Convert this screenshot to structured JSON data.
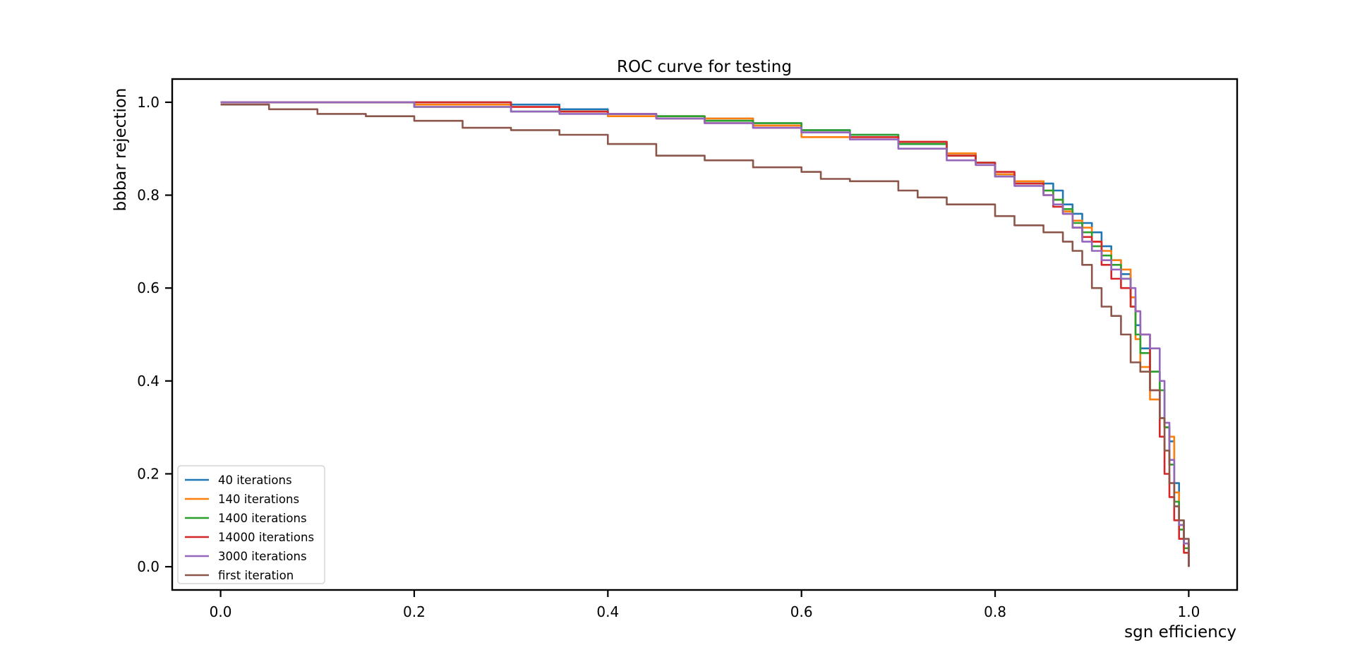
{
  "chart_data": {
    "type": "line",
    "title": "ROC curve for testing",
    "xlabel": "sgn efficiency",
    "ylabel": "bbbar rejection",
    "xlim": [
      -0.05,
      1.05
    ],
    "ylim": [
      -0.05,
      1.05
    ],
    "xticks": [
      0.0,
      0.2,
      0.4,
      0.6,
      0.8,
      1.0
    ],
    "xtick_labels": [
      "0.0",
      "0.2",
      "0.4",
      "0.6",
      "0.8",
      "1.0"
    ],
    "yticks": [
      0.0,
      0.2,
      0.4,
      0.6,
      0.8,
      1.0
    ],
    "ytick_labels": [
      "0.0",
      "0.2",
      "0.4",
      "0.6",
      "0.8",
      "1.0"
    ],
    "grid": false,
    "legend_position": "lower-left",
    "series": [
      {
        "name": "40 iterations",
        "color": "#1f77b4",
        "x": [
          0.0,
          0.1,
          0.2,
          0.3,
          0.35,
          0.4,
          0.45,
          0.5,
          0.55,
          0.6,
          0.65,
          0.7,
          0.75,
          0.78,
          0.8,
          0.82,
          0.85,
          0.86,
          0.87,
          0.88,
          0.89,
          0.9,
          0.91,
          0.92,
          0.93,
          0.94,
          0.945,
          0.95,
          0.96,
          0.97,
          0.975,
          0.98,
          0.985,
          0.99,
          0.995,
          1.0
        ],
        "y": [
          1.0,
          1.0,
          1.0,
          0.995,
          0.985,
          0.975,
          0.97,
          0.965,
          0.955,
          0.94,
          0.93,
          0.91,
          0.89,
          0.87,
          0.845,
          0.83,
          0.825,
          0.81,
          0.78,
          0.76,
          0.74,
          0.72,
          0.69,
          0.66,
          0.63,
          0.58,
          0.52,
          0.47,
          0.42,
          0.32,
          0.3,
          0.27,
          0.18,
          0.1,
          0.05,
          0.0
        ]
      },
      {
        "name": "140 iterations",
        "color": "#ff7f0e",
        "x": [
          0.0,
          0.1,
          0.2,
          0.3,
          0.35,
          0.4,
          0.45,
          0.5,
          0.55,
          0.6,
          0.65,
          0.7,
          0.75,
          0.78,
          0.8,
          0.82,
          0.85,
          0.86,
          0.87,
          0.88,
          0.89,
          0.9,
          0.91,
          0.92,
          0.93,
          0.94,
          0.945,
          0.95,
          0.96,
          0.97,
          0.975,
          0.98,
          0.985,
          0.99,
          0.995,
          1.0
        ],
        "y": [
          1.0,
          1.0,
          0.995,
          0.99,
          0.98,
          0.97,
          0.97,
          0.965,
          0.95,
          0.925,
          0.925,
          0.915,
          0.89,
          0.865,
          0.845,
          0.83,
          0.81,
          0.79,
          0.765,
          0.745,
          0.73,
          0.7,
          0.68,
          0.66,
          0.64,
          0.58,
          0.49,
          0.43,
          0.36,
          0.32,
          0.3,
          0.28,
          0.16,
          0.09,
          0.04,
          0.0
        ]
      },
      {
        "name": "1400 iterations",
        "color": "#2ca02c",
        "x": [
          0.0,
          0.1,
          0.2,
          0.3,
          0.35,
          0.4,
          0.45,
          0.5,
          0.55,
          0.6,
          0.65,
          0.7,
          0.75,
          0.78,
          0.8,
          0.82,
          0.85,
          0.86,
          0.87,
          0.88,
          0.89,
          0.9,
          0.91,
          0.92,
          0.93,
          0.94,
          0.945,
          0.95,
          0.96,
          0.97,
          0.975,
          0.98,
          0.985,
          0.99,
          0.995,
          1.0
        ],
        "y": [
          1.0,
          1.0,
          0.99,
          0.98,
          0.98,
          0.975,
          0.97,
          0.96,
          0.955,
          0.94,
          0.93,
          0.91,
          0.885,
          0.87,
          0.84,
          0.825,
          0.81,
          0.79,
          0.77,
          0.74,
          0.72,
          0.69,
          0.67,
          0.65,
          0.62,
          0.56,
          0.5,
          0.46,
          0.42,
          0.38,
          0.3,
          0.22,
          0.14,
          0.08,
          0.04,
          0.0
        ]
      },
      {
        "name": "14000 iterations",
        "color": "#d62728",
        "x": [
          0.0,
          0.1,
          0.2,
          0.3,
          0.35,
          0.4,
          0.45,
          0.5,
          0.55,
          0.6,
          0.65,
          0.7,
          0.75,
          0.78,
          0.8,
          0.82,
          0.85,
          0.86,
          0.87,
          0.88,
          0.89,
          0.9,
          0.91,
          0.92,
          0.93,
          0.94,
          0.945,
          0.95,
          0.96,
          0.97,
          0.975,
          0.98,
          0.985,
          0.99,
          0.995,
          1.0
        ],
        "y": [
          1.0,
          1.0,
          1.0,
          0.99,
          0.98,
          0.975,
          0.965,
          0.955,
          0.945,
          0.935,
          0.925,
          0.915,
          0.885,
          0.87,
          0.85,
          0.825,
          0.8,
          0.775,
          0.76,
          0.73,
          0.71,
          0.7,
          0.65,
          0.62,
          0.6,
          0.56,
          0.55,
          0.5,
          0.38,
          0.28,
          0.2,
          0.15,
          0.1,
          0.06,
          0.03,
          0.0
        ]
      },
      {
        "name": "3000 iterations",
        "color": "#9467bd",
        "x": [
          0.0,
          0.1,
          0.2,
          0.3,
          0.35,
          0.4,
          0.45,
          0.5,
          0.55,
          0.6,
          0.65,
          0.7,
          0.75,
          0.78,
          0.8,
          0.82,
          0.85,
          0.86,
          0.87,
          0.88,
          0.89,
          0.9,
          0.91,
          0.92,
          0.93,
          0.94,
          0.945,
          0.95,
          0.96,
          0.97,
          0.975,
          0.98,
          0.985,
          0.99,
          0.995,
          1.0
        ],
        "y": [
          1.0,
          1.0,
          0.99,
          0.98,
          0.975,
          0.975,
          0.965,
          0.955,
          0.945,
          0.935,
          0.92,
          0.9,
          0.875,
          0.865,
          0.84,
          0.82,
          0.8,
          0.78,
          0.76,
          0.73,
          0.7,
          0.68,
          0.66,
          0.64,
          0.62,
          0.6,
          0.55,
          0.5,
          0.47,
          0.4,
          0.31,
          0.23,
          0.13,
          0.09,
          0.05,
          0.0
        ]
      },
      {
        "name": "first iteration",
        "color": "#8c564b",
        "x": [
          0.0,
          0.05,
          0.1,
          0.15,
          0.2,
          0.25,
          0.3,
          0.35,
          0.4,
          0.45,
          0.5,
          0.55,
          0.6,
          0.62,
          0.65,
          0.7,
          0.72,
          0.75,
          0.8,
          0.82,
          0.85,
          0.87,
          0.88,
          0.89,
          0.9,
          0.91,
          0.92,
          0.93,
          0.94,
          0.95,
          0.96,
          0.97,
          0.975,
          0.98,
          0.985,
          0.99,
          0.995,
          1.0
        ],
        "y": [
          0.995,
          0.985,
          0.975,
          0.97,
          0.96,
          0.945,
          0.94,
          0.93,
          0.91,
          0.885,
          0.875,
          0.86,
          0.85,
          0.835,
          0.83,
          0.81,
          0.795,
          0.78,
          0.755,
          0.735,
          0.72,
          0.7,
          0.68,
          0.65,
          0.6,
          0.56,
          0.54,
          0.5,
          0.44,
          0.42,
          0.38,
          0.32,
          0.25,
          0.18,
          0.13,
          0.1,
          0.06,
          0.0
        ]
      }
    ]
  }
}
